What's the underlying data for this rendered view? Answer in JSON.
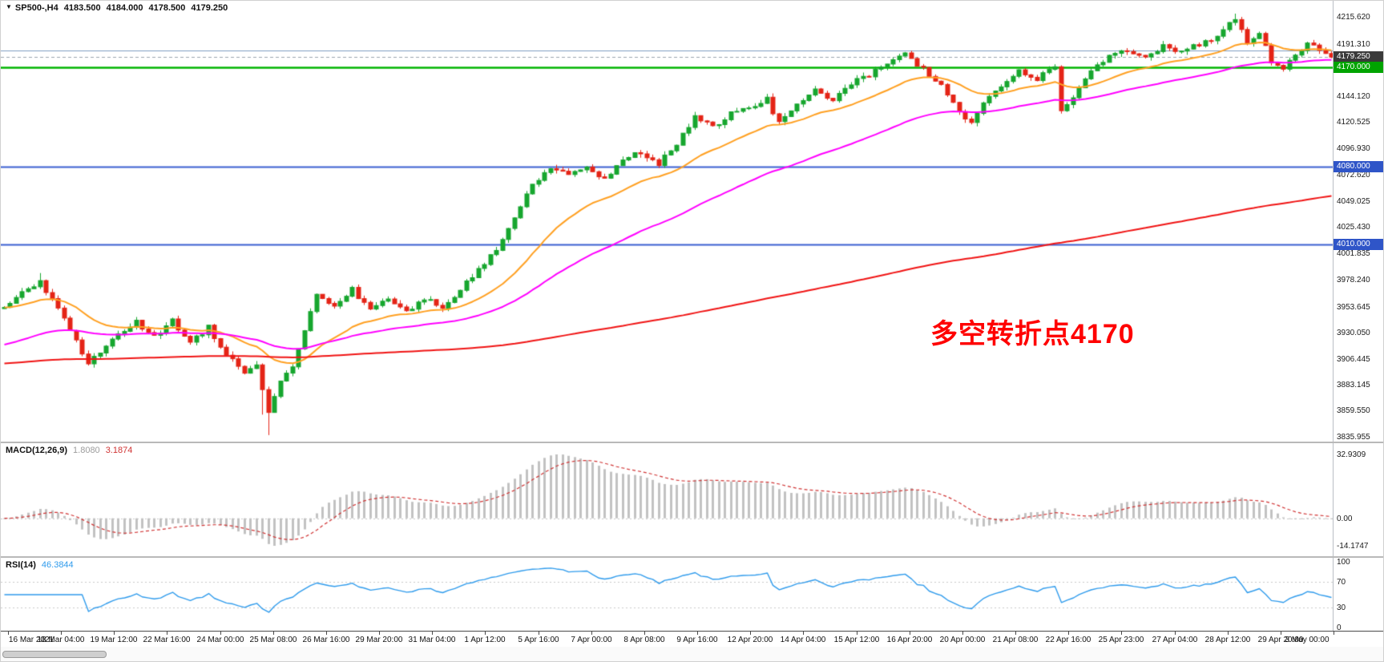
{
  "header": {
    "symbol": "SP500-,H4",
    "open": "4183.500",
    "high": "4184.000",
    "low": "4178.500",
    "close": "4179.250"
  },
  "icons": {
    "chart_marker": "▼"
  },
  "annotation": {
    "text": "多空转折点4170"
  },
  "indicators": {
    "macd": {
      "label": "MACD(12,26,9)",
      "main_value": "1.8080",
      "signal_value": "3.1874"
    },
    "rsi": {
      "label": "RSI(14)",
      "value": "46.3844"
    }
  },
  "axis": {
    "price_labels": [
      "4215.620",
      "4191.310",
      "4144.120",
      "4120.525",
      "4096.930",
      "4072.620",
      "4049.025",
      "4025.430",
      "4001.835",
      "3978.240",
      "3953.645",
      "3930.050",
      "3906.445",
      "3883.145",
      "3859.550",
      "3835.955"
    ],
    "badges": [
      {
        "text": "4179.250",
        "type": "current"
      },
      {
        "text": "4170.000",
        "type": "green"
      },
      {
        "text": "4080.000",
        "type": "blue"
      },
      {
        "text": "4010.000",
        "type": "blue"
      }
    ],
    "macd_labels": [
      "32.9309",
      "0.00",
      "-14.1747"
    ],
    "rsi_labels": [
      "100",
      "70",
      "30",
      "0"
    ]
  },
  "colors": {
    "up": "#17a62e",
    "down": "#e42417",
    "ma_fast": "#ffa022",
    "ma_mid": "#ff00ff",
    "ma_slow": "#f01414",
    "line_green": "#00b400",
    "line_blue": "#3a5fd0",
    "line_steel": "#7e9cc0",
    "bid_line": "#9aa4ae",
    "hist_bar": "#c2c2c2",
    "hist_text": "#9c9c9c",
    "macd_signal": "#d03434",
    "rsi_line": "#2f9bec",
    "level_dotted": "#c9c9c9",
    "badge_current": "#3a3a3a",
    "badge_green": "#00a400",
    "badge_blue": "#2f55c8",
    "annotation": "#ff0000",
    "axis_text": "#111111"
  },
  "chart_data": {
    "type": "candlestick",
    "symbol": "SP500-",
    "timeframe": "H4",
    "title": "SP500-,H4 4183.500 4184.000 4178.500 4179.250",
    "ohlc": {
      "open": 4183.5,
      "high": 4184.0,
      "low": 4178.5,
      "close": 4179.25
    },
    "y_tick_range": [
      3835.955,
      4215.62
    ],
    "x_labels": [
      "16 Mar 2021",
      "18 Mar 04:00",
      "19 Mar 12:00",
      "22 Mar 16:00",
      "24 Mar 00:00",
      "25 Mar 08:00",
      "26 Mar 16:00",
      "29 Mar 20:00",
      "31 Mar 04:00",
      "1 Apr 12:00",
      "5 Apr 16:00",
      "7 Apr 00:00",
      "8 Apr 08:00",
      "9 Apr 16:00",
      "12 Apr 20:00",
      "14 Apr 04:00",
      "15 Apr 12:00",
      "16 Apr 20:00",
      "20 Apr 00:00",
      "21 Apr 08:00",
      "22 Apr 16:00",
      "25 Apr 23:00",
      "27 Apr 04:00",
      "28 Apr 12:00",
      "29 Apr 20:00",
      "3 May 00:00"
    ],
    "horizontal_lines": [
      {
        "price": 4185.5,
        "color_key": "line_steel",
        "width": 1.2,
        "dash": null
      },
      {
        "price": 4179.25,
        "color_key": "bid_line",
        "width": 1,
        "dash": [
          4,
          3
        ]
      },
      {
        "price": 4170.0,
        "color_key": "line_green",
        "width": 2.5,
        "dash": null
      },
      {
        "price": 4080.0,
        "color_key": "line_blue",
        "width": 2,
        "dash": null
      },
      {
        "price": 4010.0,
        "color_key": "line_blue",
        "width": 2,
        "dash": null
      }
    ],
    "candles": 222,
    "price_path_anchors": [
      [
        0,
        3952
      ],
      [
        3,
        3966
      ],
      [
        6,
        3975
      ],
      [
        9,
        3952
      ],
      [
        12,
        3922
      ],
      [
        14,
        3902
      ],
      [
        16,
        3912
      ],
      [
        19,
        3928
      ],
      [
        22,
        3940
      ],
      [
        25,
        3926
      ],
      [
        28,
        3941
      ],
      [
        31,
        3921
      ],
      [
        34,
        3935
      ],
      [
        37,
        3910
      ],
      [
        40,
        3895
      ],
      [
        42,
        3903
      ],
      [
        44,
        3858
      ],
      [
        46,
        3886
      ],
      [
        48,
        3900
      ],
      [
        50,
        3932
      ],
      [
        52,
        3963
      ],
      [
        55,
        3956
      ],
      [
        58,
        3969
      ],
      [
        61,
        3951
      ],
      [
        64,
        3959
      ],
      [
        67,
        3949
      ],
      [
        70,
        3961
      ],
      [
        73,
        3953
      ],
      [
        76,
        3969
      ],
      [
        79,
        3986
      ],
      [
        82,
        4006
      ],
      [
        85,
        4036
      ],
      [
        88,
        4064
      ],
      [
        91,
        4079
      ],
      [
        94,
        4073
      ],
      [
        97,
        4081
      ],
      [
        100,
        4069
      ],
      [
        103,
        4086
      ],
      [
        106,
        4093
      ],
      [
        109,
        4083
      ],
      [
        112,
        4101
      ],
      [
        115,
        4126
      ],
      [
        118,
        4116
      ],
      [
        121,
        4129
      ],
      [
        124,
        4133
      ],
      [
        127,
        4141
      ],
      [
        129,
        4119
      ],
      [
        132,
        4136
      ],
      [
        135,
        4149
      ],
      [
        138,
        4141
      ],
      [
        141,
        4156
      ],
      [
        144,
        4163
      ],
      [
        147,
        4173
      ],
      [
        150,
        4181
      ],
      [
        153,
        4169
      ],
      [
        156,
        4153
      ],
      [
        159,
        4129
      ],
      [
        161,
        4121
      ],
      [
        164,
        4143
      ],
      [
        167,
        4156
      ],
      [
        169,
        4166
      ],
      [
        172,
        4159
      ],
      [
        175,
        4171
      ],
      [
        176,
        4129
      ],
      [
        178,
        4143
      ],
      [
        181,
        4166
      ],
      [
        184,
        4179
      ],
      [
        187,
        4186
      ],
      [
        190,
        4181
      ],
      [
        193,
        4189
      ],
      [
        196,
        4183
      ],
      [
        199,
        4191
      ],
      [
        202,
        4197
      ],
      [
        204,
        4209
      ],
      [
        205,
        4215
      ],
      [
        207,
        4191
      ],
      [
        209,
        4199
      ],
      [
        211,
        4176
      ],
      [
        213,
        4169
      ],
      [
        215,
        4183
      ],
      [
        217,
        4191
      ],
      [
        219,
        4187
      ],
      [
        221,
        4179.25
      ]
    ],
    "synthesis": {
      "seed": 20210503,
      "close_jitter": 2.2,
      "wick": 3.5
    },
    "wick_overrides": [
      {
        "idx": 6,
        "high": 3984
      },
      {
        "idx": 43,
        "low": 3856
      },
      {
        "idx": 44,
        "low": 3837.5
      },
      {
        "idx": 205,
        "high": 4218.5
      }
    ],
    "moving_averages": [
      {
        "name": "ma-fast",
        "period": 21,
        "color_key": "ma_fast",
        "seed": null
      },
      {
        "name": "ma-mid",
        "period": 55,
        "color_key": "ma_mid",
        "seed": 3918
      },
      {
        "name": "ma-slow",
        "period": 320,
        "color_key": "ma_slow",
        "seed": 3902
      }
    ],
    "macd": {
      "fast": 12,
      "slow": 26,
      "signal": 9,
      "current_main": 1.808,
      "current_signal": 3.1874,
      "axis_max": 32.9309,
      "axis_min": -14.1747
    },
    "rsi": {
      "period": 14,
      "current": 46.3844,
      "levels": [
        70,
        30
      ],
      "axis": [
        100,
        70,
        30,
        0
      ]
    }
  }
}
